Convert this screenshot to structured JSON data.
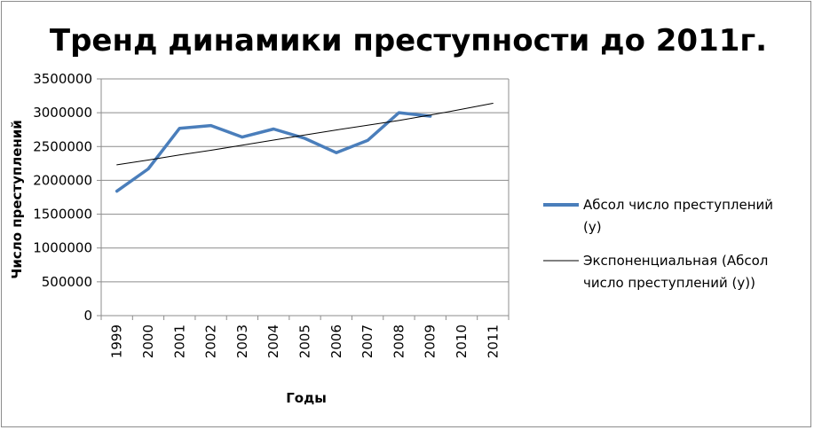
{
  "chart_data": {
    "type": "line",
    "title": "Тренд динамики преступности до 2011г.",
    "xlabel": "Годы",
    "ylabel": "Число преступлений",
    "ylim": [
      0,
      3500000
    ],
    "yticks": [
      0,
      500000,
      1000000,
      1500000,
      2000000,
      2500000,
      3000000,
      3500000
    ],
    "ytick_labels": [
      "0",
      "500000",
      "1000000",
      "1500000",
      "2000000",
      "2500000",
      "3000000",
      "3500000"
    ],
    "categories": [
      "1999",
      "2000",
      "2001",
      "2002",
      "2003",
      "2004",
      "2005",
      "2006",
      "2007",
      "2008",
      "2009",
      "2010",
      "2011"
    ],
    "grid": true,
    "legend_position": "right",
    "series": [
      {
        "name": "Абсол число преступлений (у)",
        "color": "#4a7ebb",
        "values": [
          1840000,
          2170000,
          2770000,
          2810000,
          2640000,
          2760000,
          2620000,
          2410000,
          2590000,
          3000000,
          2950000,
          null,
          null
        ]
      },
      {
        "name": "Экспоненциальная (Абсол число преступлений (у))",
        "color": "#000000",
        "values": [
          2230000,
          2300000,
          2375000,
          2445000,
          2520000,
          2595000,
          2670000,
          2745000,
          2815000,
          2885000,
          2965000,
          3050000,
          3140000
        ]
      }
    ]
  }
}
